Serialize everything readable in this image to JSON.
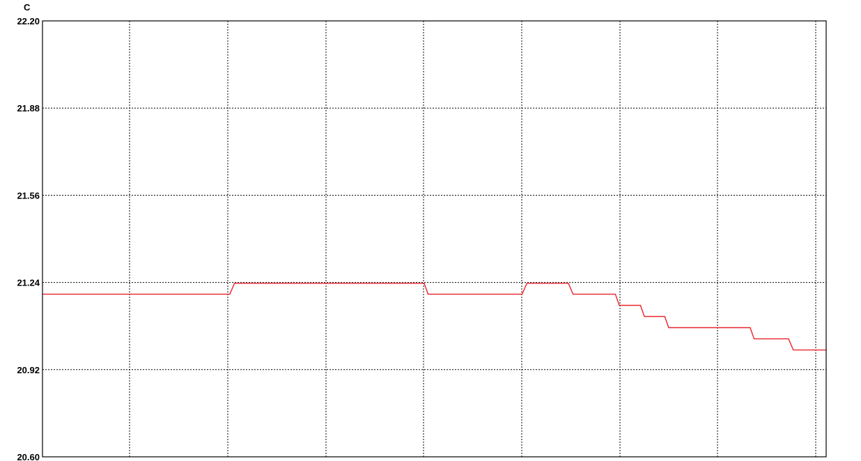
{
  "chart_data": {
    "type": "line",
    "ylabel": "C",
    "ylim": [
      20.6,
      22.2
    ],
    "yticks": [
      "22.20",
      "21.88",
      "21.56",
      "21.24",
      "20.92",
      "20.60"
    ],
    "x_label_count": 0,
    "grid": true,
    "grid_style": "dotted",
    "vertical_gridlines": 8,
    "series": [
      {
        "color": "#e8232a",
        "points": [
          {
            "x": 0.0,
            "y": 21.197
          },
          {
            "x": 0.239,
            "y": 21.197
          },
          {
            "x": 0.245,
            "y": 21.237
          },
          {
            "x": 0.487,
            "y": 21.237
          },
          {
            "x": 0.492,
            "y": 21.197
          },
          {
            "x": 0.612,
            "y": 21.197
          },
          {
            "x": 0.618,
            "y": 21.237
          },
          {
            "x": 0.671,
            "y": 21.237
          },
          {
            "x": 0.677,
            "y": 21.197
          },
          {
            "x": 0.731,
            "y": 21.197
          },
          {
            "x": 0.736,
            "y": 21.156
          },
          {
            "x": 0.763,
            "y": 21.156
          },
          {
            "x": 0.768,
            "y": 21.115
          },
          {
            "x": 0.794,
            "y": 21.115
          },
          {
            "x": 0.799,
            "y": 21.074
          },
          {
            "x": 0.903,
            "y": 21.074
          },
          {
            "x": 0.908,
            "y": 21.033
          },
          {
            "x": 0.952,
            "y": 21.033
          },
          {
            "x": 0.958,
            "y": 20.992
          },
          {
            "x": 1.0,
            "y": 20.992
          }
        ]
      }
    ]
  }
}
